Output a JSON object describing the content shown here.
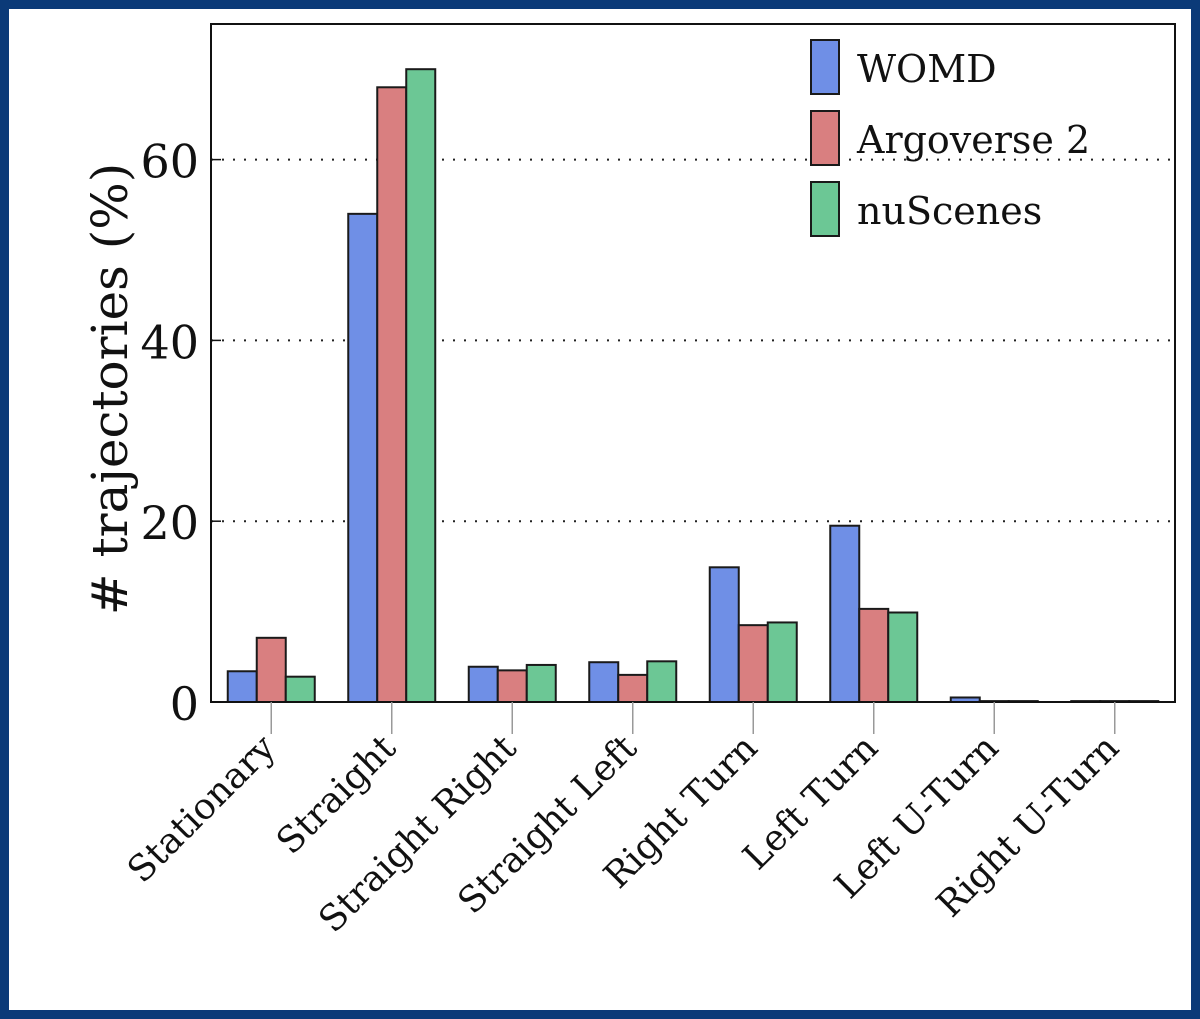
{
  "chart_data": {
    "type": "bar",
    "title": "",
    "xlabel": "",
    "ylabel": "# trajectories (%)",
    "ylim": [
      0,
      75
    ],
    "yticks": [
      0,
      20,
      40,
      60
    ],
    "grid": "horizontal-dotted",
    "legend_position": "top-right",
    "categories": [
      "Stationary",
      "Straight",
      "Straight Right",
      "Straight Left",
      "Right Turn",
      "Left Turn",
      "Left U-Turn",
      "Right U-Turn"
    ],
    "series": [
      {
        "name": "WOMD",
        "color": "#6f8fe6",
        "values": [
          3.4,
          54.0,
          3.9,
          4.4,
          14.9,
          19.5,
          0.5,
          0.1
        ]
      },
      {
        "name": "Argoverse 2",
        "color": "#d97f80",
        "values": [
          7.1,
          68.0,
          3.5,
          3.0,
          8.5,
          10.3,
          0.1,
          0.1
        ]
      },
      {
        "name": "nuScenes",
        "color": "#6cc795",
        "values": [
          2.8,
          70.0,
          4.1,
          4.5,
          8.8,
          9.9,
          0.1,
          0.1
        ]
      }
    ]
  }
}
